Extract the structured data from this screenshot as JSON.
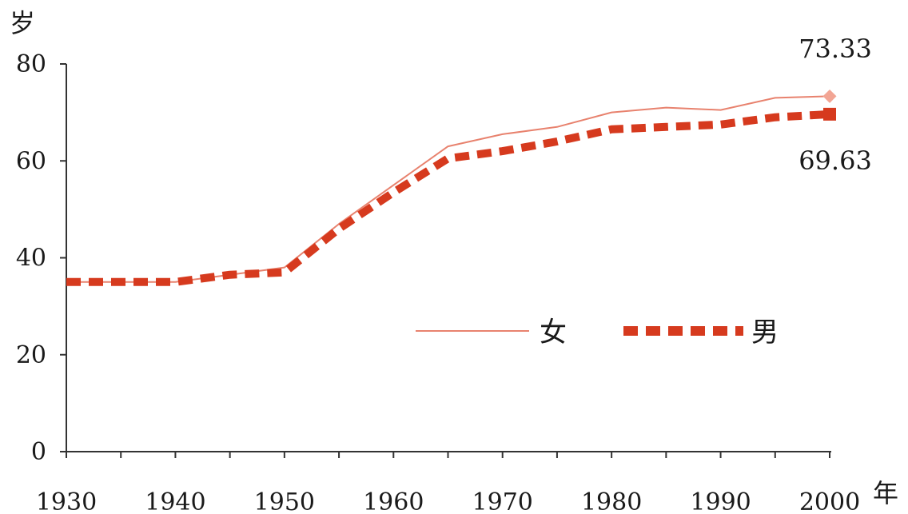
{
  "chart_data": {
    "type": "line",
    "ylabel": "岁",
    "xlabel": "年",
    "xlim": [
      1930,
      2000
    ],
    "ylim": [
      0,
      80
    ],
    "x_ticks": [
      1930,
      1940,
      1950,
      1960,
      1970,
      1980,
      1990,
      2000
    ],
    "y_ticks": [
      0,
      20,
      40,
      60,
      80
    ],
    "grid": false,
    "legend_position": "center-right",
    "series": [
      {
        "name": "女",
        "color": "#e8826e",
        "style": "solid-thin",
        "x": [
          1930,
          1935,
          1940,
          1945,
          1950,
          1955,
          1960,
          1965,
          1970,
          1975,
          1980,
          1985,
          1990,
          1995,
          2000
        ],
        "y": [
          35,
          35,
          35,
          36.5,
          38,
          47,
          55,
          63,
          65.5,
          67,
          70,
          71,
          70.5,
          73,
          73.33
        ],
        "end_label": "73.33"
      },
      {
        "name": "男",
        "color": "#d63a1e",
        "style": "dashed-thick",
        "x": [
          1930,
          1935,
          1940,
          1945,
          1950,
          1955,
          1960,
          1965,
          1970,
          1975,
          1980,
          1985,
          1990,
          1995,
          2000
        ],
        "y": [
          35,
          35,
          35,
          36.5,
          37,
          46,
          53.5,
          60.5,
          62,
          64,
          66.5,
          67,
          67.5,
          69,
          69.63
        ],
        "end_label": "69.63"
      }
    ]
  }
}
